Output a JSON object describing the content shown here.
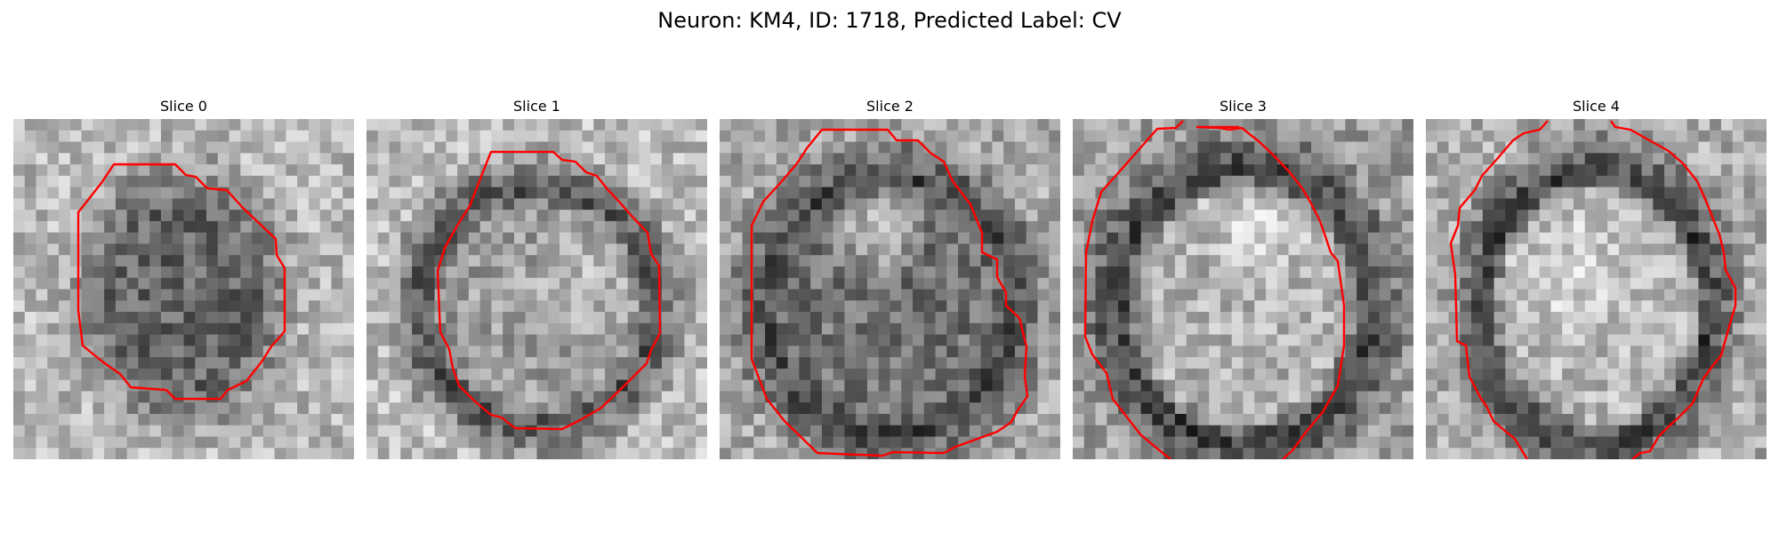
{
  "figure": {
    "title": "Neuron: KM4, ID: 1718, Predicted Label: CV",
    "slices": [
      {
        "label": "Slice 0"
      },
      {
        "label": "Slice 1"
      },
      {
        "label": "Slice 2"
      },
      {
        "label": "Slice 3"
      },
      {
        "label": "Slice 4"
      }
    ],
    "contour_color": "#ff0000",
    "colormap": "grayscale"
  }
}
